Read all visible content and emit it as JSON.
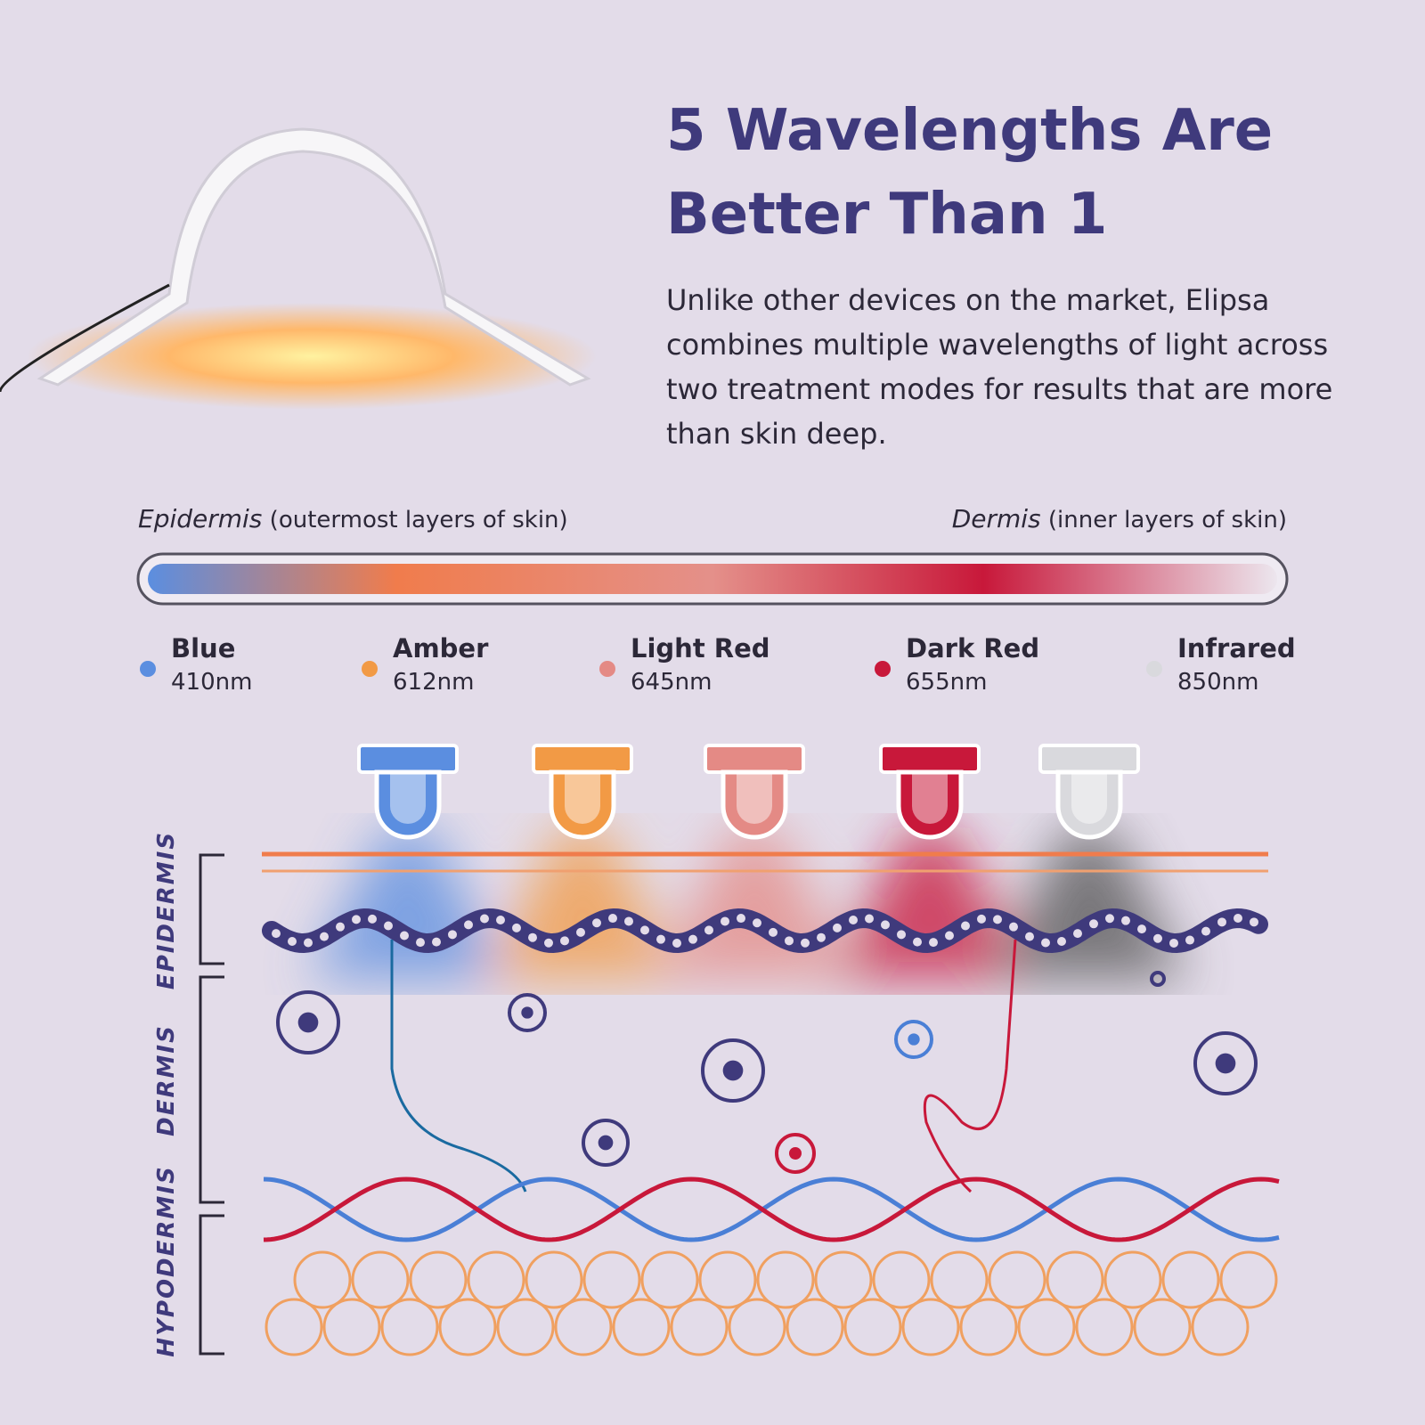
{
  "header": {
    "title": "5 Wavelengths Are Better Than 1",
    "body": "Unlike other devices on the market, Elipsa combines multiple wavelengths of light across two treatment modes for results that are more than skin deep."
  },
  "scale": {
    "left": {
      "term": "Epidermis",
      "note": "(outermost layers of skin)"
    },
    "right": {
      "term": "Dermis",
      "note": "(inner layers of skin)"
    }
  },
  "wavelengths": [
    {
      "name": "Blue",
      "nm": "410nm",
      "color": "#5b8ee0"
    },
    {
      "name": "Amber",
      "nm": "612nm",
      "color": "#f29a45"
    },
    {
      "name": "Light Red",
      "nm": "645nm",
      "color": "#e48a85"
    },
    {
      "name": "Dark Red",
      "nm": "655nm",
      "color": "#c8183a"
    },
    {
      "name": "Infrared",
      "nm": "850nm",
      "color": "#d9d9dd"
    }
  ],
  "layers": [
    "EPIDERMIS",
    "DERMIS",
    "HYPODERMIS"
  ]
}
